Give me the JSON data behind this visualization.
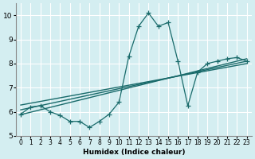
{
  "xlabel": "Humidex (Indice chaleur)",
  "ylabel": "",
  "background_color": "#d4eef1",
  "grid_color": "#ffffff",
  "line_color": "#1a6b6b",
  "x_data": [
    0,
    1,
    2,
    3,
    4,
    5,
    6,
    7,
    8,
    9,
    10,
    11,
    12,
    13,
    14,
    15,
    16,
    17,
    18,
    19,
    20,
    21,
    22,
    23
  ],
  "y_data": [
    5.9,
    6.2,
    6.25,
    6.0,
    5.85,
    5.6,
    5.6,
    5.35,
    5.6,
    5.9,
    6.4,
    8.3,
    9.55,
    10.1,
    9.55,
    9.7,
    8.1,
    6.25,
    7.65,
    8.0,
    8.1,
    8.2,
    8.25,
    8.1
  ],
  "reg_line1": [
    5.88,
    8.2
  ],
  "reg_line2": [
    6.08,
    8.1
  ],
  "reg_line3": [
    6.28,
    8.0
  ],
  "ylim": [
    5.0,
    10.5
  ],
  "xlim": [
    -0.5,
    23.5
  ],
  "yticks": [
    5,
    6,
    7,
    8,
    9,
    10
  ],
  "xtick_labels": [
    "0",
    "1",
    "2",
    "3",
    "4",
    "5",
    "6",
    "7",
    "8",
    "9",
    "10",
    "11",
    "12",
    "13",
    "14",
    "15",
    "16",
    "17",
    "18",
    "19",
    "20",
    "21",
    "22",
    "23"
  ]
}
